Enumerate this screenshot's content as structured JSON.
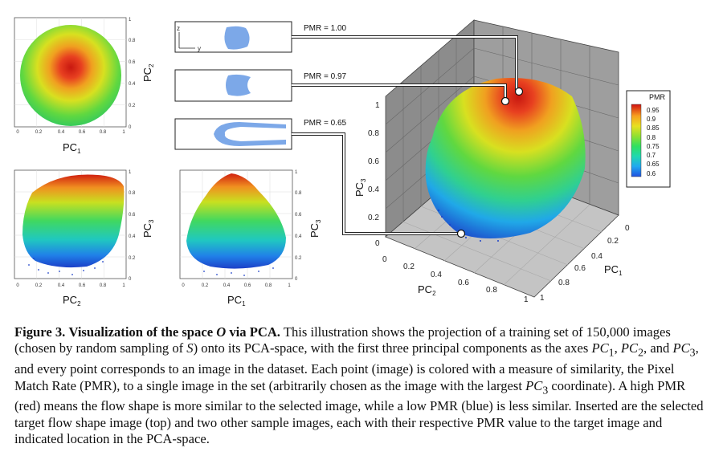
{
  "colors": {
    "pmr_scale": [
      "#2050e0",
      "#20a8f0",
      "#20d8b0",
      "#30e060",
      "#90e030",
      "#e8e020",
      "#f8a020",
      "#e83020",
      "#c01010"
    ],
    "shape_fill": "#7ca8e8",
    "wall_fill": "#8c8c8c",
    "floor_fill": "#c4c4c4"
  },
  "figure": {
    "panel_top": {
      "xlabel": "PC",
      "xlabel_sub": "1",
      "ylabel": "PC",
      "ylabel_sub": "2",
      "xticks": [
        "0",
        "0.2",
        "0.4",
        "0.6",
        "0.8",
        "1"
      ],
      "yticks": [
        "1",
        "0.8",
        "0.6",
        "0.4",
        "0.2",
        "0"
      ]
    },
    "panel_bottom_left": {
      "xlabel": "PC",
      "xlabel_sub": "2",
      "ylabel": "PC",
      "ylabel_sub": "3",
      "xticks": [
        "0",
        "0.2",
        "0.4",
        "0.6",
        "0.8",
        "1"
      ],
      "yticks": [
        "1",
        "0.8",
        "0.6",
        "0.4",
        "0.2",
        "0"
      ]
    },
    "panel_bottom_right": {
      "xlabel": "PC",
      "xlabel_sub": "1",
      "ylabel": "PC",
      "ylabel_sub": "3",
      "xticks": [
        "0",
        "0.2",
        "0.4",
        "0.6",
        "0.8",
        "1"
      ],
      "yticks": [
        "1",
        "0.8",
        "0.6",
        "0.4",
        "0.2",
        "0"
      ]
    },
    "samples": [
      {
        "label": "PMR = 1.00"
      },
      {
        "label": "PMR = 0.97"
      },
      {
        "label": "PMR = 0.65"
      }
    ],
    "sample_axes": {
      "z": "z",
      "y": "y"
    },
    "plot3d": {
      "pc3_ticks": [
        "1",
        "0.8",
        "0.6",
        "0.4",
        "0.2",
        "0"
      ],
      "pc2_ticks": [
        "0",
        "0.2",
        "0.4",
        "0.6",
        "0.8",
        "1"
      ],
      "pc1_ticks": [
        "0",
        "0.2",
        "0.4",
        "0.6",
        "0.8",
        "1"
      ],
      "pc3_label": "PC",
      "pc3_sub": "3",
      "pc2_label": "PC",
      "pc2_sub": "2",
      "pc1_label": "PC",
      "pc1_sub": "1"
    },
    "legend": {
      "title": "PMR",
      "values": [
        "0.95",
        "0.9",
        "0.85",
        "0.8",
        "0.75",
        "0.7",
        "0.65",
        "0.6"
      ]
    }
  },
  "caption": {
    "label": "Figure 3.",
    "title_pre": "Visualization of the space ",
    "title_symbol": "O",
    "title_post": " via PCA.",
    "part1": " This illustration shows the projection of a training set of 150,000 images (chosen by random sampling of ",
    "symbol_s": "S",
    "part2": ") onto its PCA-space, with the first three principal components as the axes ",
    "pc": "PC",
    "sub1": "1",
    "sep1": ", ",
    "sub2": "2",
    "sep2": ", and ",
    "sub3": "3",
    "part3": ", and every point corresponds to an image in the dataset. Each point (image) is colored with a measure of similarity, the Pixel Match Rate (PMR), to a single image in the set (arbitrarily chosen as the image with the largest ",
    "part4": " coordinate). A high PMR (red) means the flow shape is more similar to the selected image, while a low PMR (blue) is less similar. Inserted are the selected target flow shape image (top) and two other sample images, each with their respective PMR value to the target image and indicated location in the PCA-space."
  }
}
